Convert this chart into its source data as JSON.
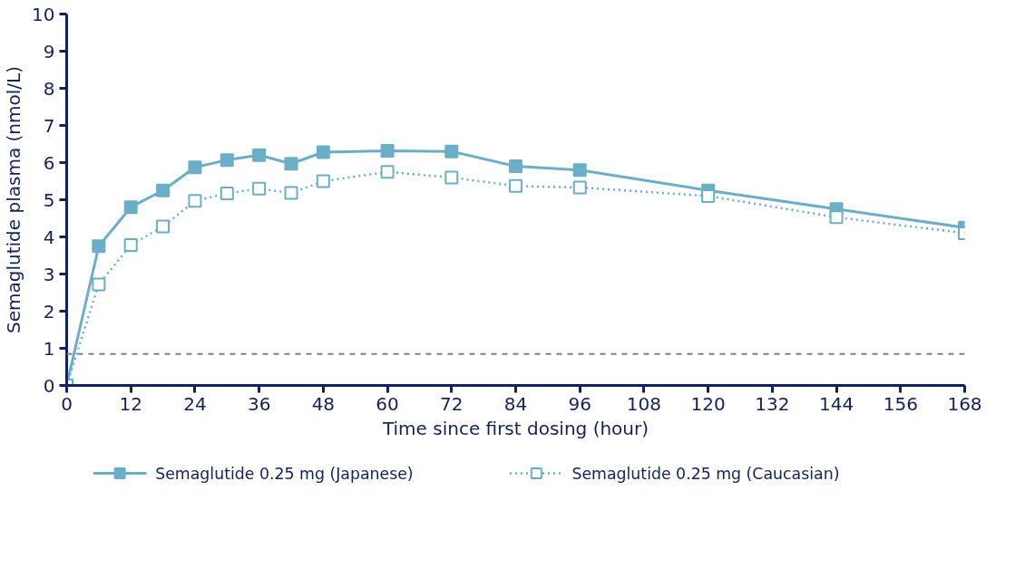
{
  "chart_data": {
    "type": "line",
    "xlabel": "Time since first dosing (hour)",
    "ylabel": "Semaglutide plasma (nmol/L)",
    "x": [
      0,
      6,
      12,
      18,
      24,
      30,
      36,
      42,
      48,
      60,
      72,
      84,
      96,
      120,
      144,
      168
    ],
    "series": [
      {
        "name": "Semaglutide 0.25 mg (Japanese)",
        "color": "#6aaec8",
        "line_style": "solid",
        "values": [
          0,
          3.75,
          4.8,
          5.25,
          5.87,
          6.07,
          6.2,
          5.97,
          6.28,
          6.32,
          6.3,
          5.9,
          5.8,
          5.25,
          4.75,
          4.25
        ]
      },
      {
        "name": "Semaglutide 0.25 mg (Caucasian)",
        "color": "#6aaec8",
        "line_style": "dotted",
        "values": [
          0,
          2.72,
          3.78,
          4.28,
          4.97,
          5.17,
          5.3,
          5.18,
          5.5,
          5.75,
          5.6,
          5.37,
          5.33,
          5.1,
          4.53,
          4.1
        ]
      }
    ],
    "xlim": [
      0,
      168
    ],
    "xticks": [
      0,
      12,
      24,
      36,
      48,
      60,
      72,
      84,
      96,
      108,
      120,
      132,
      144,
      156,
      168
    ],
    "ylim": [
      0,
      10
    ],
    "yticks": [
      0,
      1,
      2,
      3,
      4,
      5,
      6,
      7,
      8,
      9,
      10
    ],
    "ref_lines": [
      {
        "axis": "y",
        "value": 0.85,
        "label": null,
        "color": "#808080",
        "line_style": "dashed"
      }
    ],
    "marker": "square",
    "grid": false,
    "legend": "bottom"
  }
}
